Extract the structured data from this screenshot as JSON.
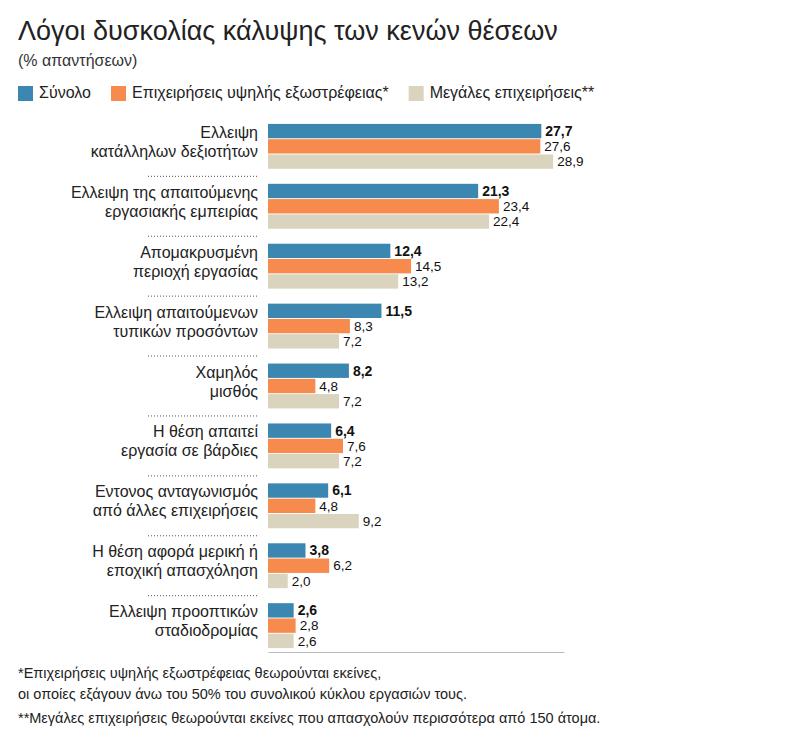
{
  "chart_data": {
    "type": "bar",
    "orientation": "horizontal",
    "title": "Λόγοι δυσκολίας κάλυψης των κενών θέσεων",
    "subtitle": "(% απαντήσεων)",
    "categories": [
      "Ελλειψη\nκατάλληλων δεξιοτήτων",
      "Ελλειψη της απαιτούμενης\nεργασιακής εμπειρίας",
      "Απομακρυσμένη\nπεριοχή εργασίας",
      "Ελλειψη απαιτούμενων\nτυπικών προσόντων",
      "Χαμηλός\nμισθός",
      "Η θέση απαιτεί\nεργασία σε βάρδιες",
      "Εντονος ανταγωνισμός\nαπό άλλες επιχειρήσεις",
      "Η θέση αφορά μερική ή\nεποχική απασχόληση",
      "Ελλειψη προοπτικών\nσταδιοδρομίας"
    ],
    "series": [
      {
        "name": "Σύνολο",
        "color": "#3b87b1",
        "values": [
          27.7,
          21.3,
          12.4,
          11.5,
          8.2,
          6.4,
          6.1,
          3.8,
          2.6
        ],
        "value_labels": [
          "27,7",
          "21,3",
          "12,4",
          "11,5",
          "8,2",
          "6,4",
          "6,1",
          "3,8",
          "2,6"
        ]
      },
      {
        "name": "Επιχειρήσεις υψηλής εξωστρέφειας*",
        "color": "#f68b4d",
        "values": [
          27.6,
          23.4,
          14.5,
          8.3,
          4.8,
          7.6,
          4.8,
          6.2,
          2.8
        ],
        "value_labels": [
          "27,6",
          "23,4",
          "14,5",
          "8,3",
          "4,8",
          "7,6",
          "4,8",
          "6,2",
          "2,8"
        ]
      },
      {
        "name": "Μεγάλες επιχειρήσεις**",
        "color": "#dad4be",
        "values": [
          28.9,
          22.4,
          13.2,
          7.2,
          7.2,
          7.2,
          9.2,
          2.0,
          2.6
        ],
        "value_labels": [
          "28,9",
          "22,4",
          "13,2",
          "7,2",
          "7,2",
          "7,2",
          "9,2",
          "2,0",
          "2,6"
        ]
      }
    ],
    "xlim": [
      0,
      30
    ],
    "tick_labels": "y",
    "data_labels": true,
    "grid": false,
    "legend": "top-left",
    "notes": [
      "*Επιχειρήσεις υψηλής εξωστρέφειας θεωρούνται εκείνες,\nοι οποίες εξάγουν άνω του 50% του συνολικού κύκλου εργασιών τους.",
      "**Μεγάλες επιχειρήσεις θεωρούνται εκείνες που απασχολούν περισσότερα από 150 άτομα."
    ]
  }
}
